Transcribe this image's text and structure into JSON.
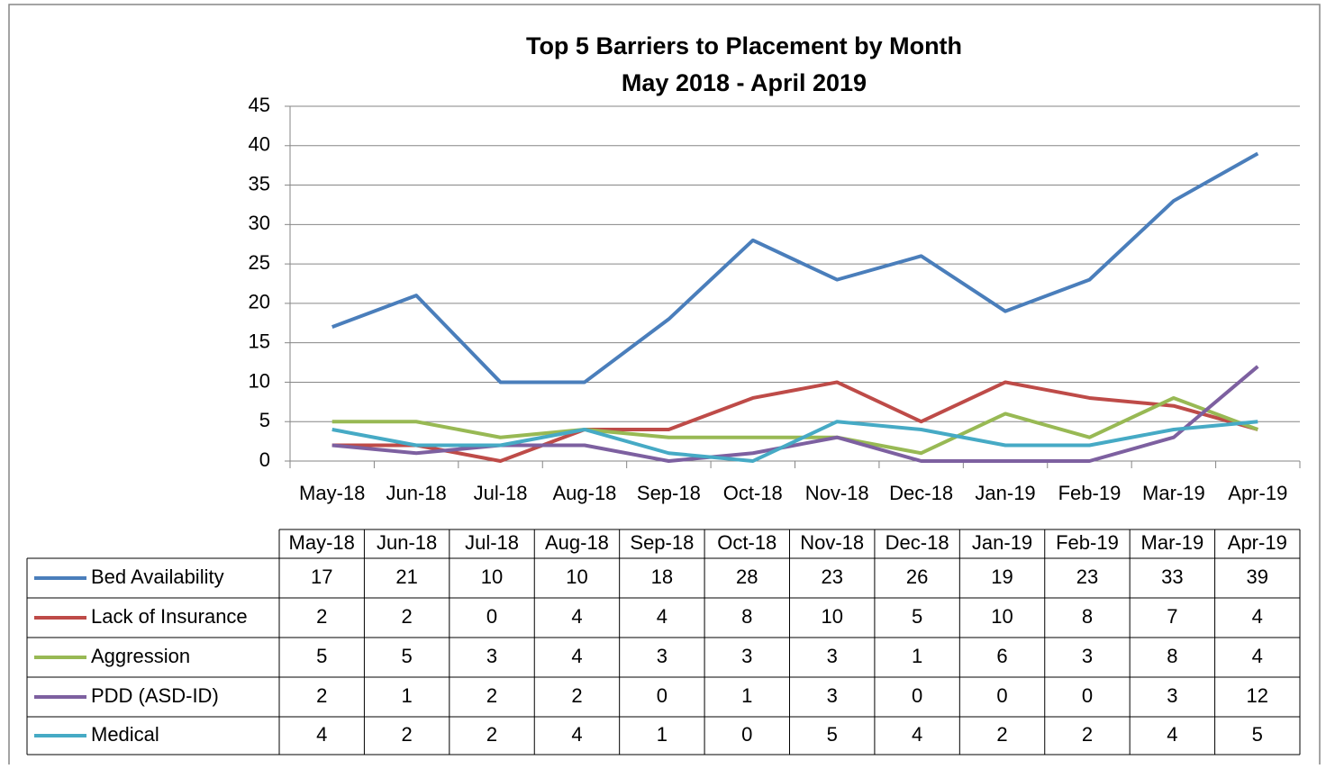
{
  "chart_data": {
    "type": "line",
    "title": "Top 5 Barriers to Placement by Month",
    "subtitle": "May 2018 - April 2019",
    "categories": [
      "May-18",
      "Jun-18",
      "Jul-18",
      "Aug-18",
      "Sep-18",
      "Oct-18",
      "Nov-18",
      "Dec-18",
      "Jan-19",
      "Feb-19",
      "Mar-19",
      "Apr-19"
    ],
    "series": [
      {
        "name": "Bed Availability",
        "color": "#4a7ebb",
        "values": [
          17,
          21,
          10,
          10,
          18,
          28,
          23,
          26,
          19,
          23,
          33,
          39
        ]
      },
      {
        "name": "Lack of Insurance",
        "color": "#be4b48",
        "values": [
          2,
          2,
          0,
          4,
          4,
          8,
          10,
          5,
          10,
          8,
          7,
          4
        ]
      },
      {
        "name": "Aggression",
        "color": "#98b954",
        "values": [
          5,
          5,
          3,
          4,
          3,
          3,
          3,
          1,
          6,
          3,
          8,
          4
        ]
      },
      {
        "name": "PDD (ASD-ID)",
        "color": "#7d60a0",
        "values": [
          2,
          1,
          2,
          2,
          0,
          1,
          3,
          0,
          0,
          0,
          3,
          12
        ]
      },
      {
        "name": "Medical",
        "color": "#46aac5",
        "values": [
          4,
          2,
          2,
          4,
          1,
          0,
          5,
          4,
          2,
          2,
          4,
          5
        ]
      }
    ],
    "ylim": [
      0,
      45
    ],
    "yticks": [
      0,
      5,
      10,
      15,
      20,
      25,
      30,
      35,
      40,
      45
    ],
    "grid": true
  }
}
